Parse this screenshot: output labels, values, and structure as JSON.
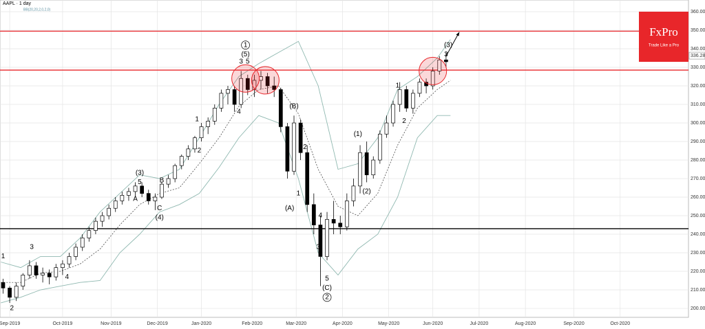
{
  "chart_data": {
    "type": "candlestick",
    "title": "AAPL · 1 day",
    "subtitle": "BB(20,20,2,0,2,0)",
    "brand": {
      "name": "FxPro",
      "tagline": "Trade Like a Pro",
      "color": "#e8262a"
    },
    "xlim": [
      -4.4,
      308
    ],
    "ylim": [
      195.2,
      366.3
    ],
    "xticks": [
      {
        "value": 0,
        "label": "Sep-2019"
      },
      {
        "value": 24,
        "label": "Oct-2019"
      },
      {
        "value": 46,
        "label": "Nov-2019"
      },
      {
        "value": 67,
        "label": "Dec-2019"
      },
      {
        "value": 87,
        "label": "Jan-2020"
      },
      {
        "value": 110,
        "label": "Feb-2020"
      },
      {
        "value": 130,
        "label": "Mar-2020"
      },
      {
        "value": 151,
        "label": "Apr-2020"
      },
      {
        "value": 172,
        "label": "May-2020"
      },
      {
        "value": 192,
        "label": "Jun-2020"
      },
      {
        "value": 213,
        "label": "Jul-2020"
      },
      {
        "value": 234,
        "label": "Aug-2020"
      },
      {
        "value": 256,
        "label": "Sep-2020"
      },
      {
        "value": 277,
        "label": "Oct-2020"
      }
    ],
    "yticks": [
      {
        "value": 200,
        "label": "200.00"
      },
      {
        "value": 210,
        "label": "210.00"
      },
      {
        "value": 220,
        "label": "220.00"
      },
      {
        "value": 230,
        "label": "230.00"
      },
      {
        "value": 240,
        "label": "240.00"
      },
      {
        "value": 250,
        "label": "250.00"
      },
      {
        "value": 260,
        "label": "260.00"
      },
      {
        "value": 270,
        "label": "270.00"
      },
      {
        "value": 280,
        "label": "280.00"
      },
      {
        "value": 290,
        "label": "290.00"
      },
      {
        "value": 300,
        "label": "300.00"
      },
      {
        "value": 310,
        "label": "310.00"
      },
      {
        "value": 320,
        "label": "320.00"
      },
      {
        "value": 330,
        "label": "330.00"
      },
      {
        "value": 340,
        "label": "340.00"
      },
      {
        "value": 350,
        "label": "350.00"
      },
      {
        "value": 360,
        "label": "360.00"
      }
    ],
    "grid": true,
    "last_price": {
      "value": 336.28,
      "label": "336.28"
    },
    "candles": {
      "x": [
        -3,
        0,
        3,
        6,
        9,
        12,
        15,
        18,
        21,
        24,
        27,
        30,
        33,
        36,
        39,
        42,
        45,
        48,
        51,
        54,
        57,
        60,
        63,
        66,
        69,
        72,
        75,
        78,
        81,
        84,
        87,
        90,
        93,
        96,
        99,
        102,
        105,
        108,
        111,
        114,
        117,
        120,
        123,
        126,
        129,
        132,
        135,
        138,
        141,
        144,
        147,
        150,
        153,
        156,
        159,
        162,
        165,
        168,
        171,
        174,
        177,
        180,
        183,
        186,
        189,
        192,
        195,
        198
      ],
      "open": [
        214,
        211,
        206,
        212,
        218,
        223,
        218,
        219,
        217,
        222,
        224,
        228,
        233,
        238,
        242,
        247,
        250,
        254,
        258,
        261,
        263,
        266,
        262,
        258,
        260,
        267,
        270,
        277,
        282,
        286,
        292,
        298,
        301,
        308,
        316,
        318,
        310,
        324,
        318,
        323,
        325,
        320,
        318,
        298,
        274,
        300,
        284,
        256,
        245,
        228,
        248,
        246,
        244,
        258,
        266,
        284,
        272,
        280,
        294,
        300,
        310,
        318,
        308,
        316,
        322,
        320,
        328,
        334
      ],
      "high": [
        216,
        212,
        214,
        219,
        226,
        225,
        222,
        221,
        224,
        226,
        230,
        235,
        240,
        244,
        249,
        252,
        256,
        260,
        263,
        265,
        268,
        268,
        264,
        262,
        268,
        272,
        278,
        283,
        288,
        293,
        300,
        303,
        310,
        318,
        320,
        320,
        328,
        326,
        326,
        328,
        327,
        325,
        319,
        300,
        304,
        302,
        288,
        262,
        250,
        252,
        258,
        250,
        262,
        270,
        288,
        290,
        282,
        296,
        304,
        312,
        322,
        320,
        318,
        324,
        324,
        330,
        336,
        338
      ],
      "low": [
        208,
        203,
        204,
        210,
        216,
        216,
        214,
        213,
        215,
        218,
        222,
        226,
        231,
        236,
        240,
        244,
        248,
        252,
        256,
        258,
        260,
        260,
        256,
        253,
        259,
        265,
        268,
        275,
        280,
        284,
        290,
        294,
        299,
        306,
        310,
        306,
        308,
        315,
        314,
        318,
        316,
        314,
        295,
        270,
        272,
        280,
        252,
        240,
        212,
        226,
        240,
        240,
        242,
        255,
        262,
        268,
        270,
        278,
        292,
        298,
        306,
        306,
        305,
        314,
        316,
        318,
        326,
        330
      ],
      "close": [
        211,
        206,
        212,
        218,
        223,
        218,
        219,
        217,
        222,
        224,
        228,
        233,
        238,
        242,
        247,
        250,
        254,
        258,
        261,
        263,
        266,
        262,
        258,
        260,
        267,
        270,
        277,
        282,
        286,
        292,
        298,
        301,
        308,
        316,
        318,
        310,
        324,
        318,
        323,
        325,
        320,
        318,
        298,
        274,
        300,
        284,
        256,
        245,
        228,
        248,
        246,
        244,
        258,
        266,
        284,
        272,
        280,
        294,
        300,
        310,
        318,
        308,
        316,
        322,
        320,
        328,
        334,
        333
      ]
    },
    "bollinger": {
      "x": [
        -4,
        5,
        14,
        23,
        32,
        41,
        50,
        59,
        68,
        77,
        86,
        95,
        104,
        113,
        122,
        131,
        140,
        149,
        158,
        167,
        176,
        185,
        194,
        200
      ],
      "upper": [
        225,
        222,
        228,
        228,
        238,
        252,
        262,
        272,
        270,
        275,
        292,
        310,
        325,
        332,
        338,
        344,
        320,
        275,
        278,
        292,
        318,
        325,
        335,
        345
      ],
      "middle": [
        214,
        214,
        219,
        220,
        224,
        232,
        245,
        256,
        262,
        265,
        278,
        292,
        309,
        318,
        320,
        305,
        275,
        255,
        250,
        262,
        288,
        308,
        318,
        323
      ],
      "lower": [
        203,
        206,
        210,
        212,
        214,
        215,
        230,
        240,
        252,
        256,
        262,
        276,
        292,
        304,
        300,
        270,
        230,
        218,
        232,
        240,
        260,
        292,
        304,
        304
      ],
      "band_color": "#8fb8b0",
      "middle_color": "#333333"
    },
    "levels": [
      {
        "value": 349.5,
        "color": "#e8262a"
      },
      {
        "value": 328.5,
        "color": "#e8262a"
      },
      {
        "value": 243,
        "color": "#000000"
      }
    ],
    "highlights": [
      {
        "x": 107,
        "y": 324
      },
      {
        "x": 116,
        "y": 323
      },
      {
        "x": 192,
        "y": 328
      }
    ],
    "arrow": {
      "x": [
        198,
        204
      ],
      "y": [
        336,
        349
      ]
    },
    "annotations": [
      {
        "text": "1",
        "x": -3,
        "y": 228
      },
      {
        "text": "2",
        "x": 1,
        "y": 200
      },
      {
        "text": "3",
        "x": 10,
        "y": 233
      },
      {
        "text": "4",
        "x": 26,
        "y": 217
      },
      {
        "text": "(3)",
        "x": 59,
        "y": 273
      },
      {
        "text": "5",
        "x": 59,
        "y": 268
      },
      {
        "text": "A",
        "x": 57,
        "y": 259
      },
      {
        "text": "B",
        "x": 69,
        "y": 269
      },
      {
        "text": "C",
        "x": 68,
        "y": 254
      },
      {
        "text": "(4)",
        "x": 68,
        "y": 249
      },
      {
        "text": "1",
        "x": 85,
        "y": 302
      },
      {
        "text": "2",
        "x": 86,
        "y": 285
      },
      {
        "text": "1",
        "x": 107,
        "y": 342,
        "circled": true
      },
      {
        "text": "(5)",
        "x": 107,
        "y": 337
      },
      {
        "text": "3",
        "x": 105,
        "y": 333
      },
      {
        "text": "5",
        "x": 108,
        "y": 333
      },
      {
        "text": "4",
        "x": 104,
        "y": 306
      },
      {
        "text": "(B)",
        "x": 129,
        "y": 309
      },
      {
        "text": "2",
        "x": 134,
        "y": 287
      },
      {
        "text": "1",
        "x": 131,
        "y": 262
      },
      {
        "text": "(A)",
        "x": 127,
        "y": 254
      },
      {
        "text": "4",
        "x": 141,
        "y": 250
      },
      {
        "text": "3",
        "x": 140,
        "y": 233
      },
      {
        "text": "5",
        "x": 144,
        "y": 216
      },
      {
        "text": "(C)",
        "x": 144,
        "y": 211
      },
      {
        "text": "2",
        "x": 144,
        "y": 206,
        "circled": true
      },
      {
        "text": "(1)",
        "x": 158,
        "y": 294
      },
      {
        "text": "(2)",
        "x": 162,
        "y": 263
      },
      {
        "text": "1",
        "x": 176,
        "y": 320
      },
      {
        "text": "2",
        "x": 179,
        "y": 301
      },
      {
        "text": "(3)",
        "x": 199,
        "y": 342
      },
      {
        "text": "3",
        "x": 198,
        "y": 337
      }
    ]
  }
}
